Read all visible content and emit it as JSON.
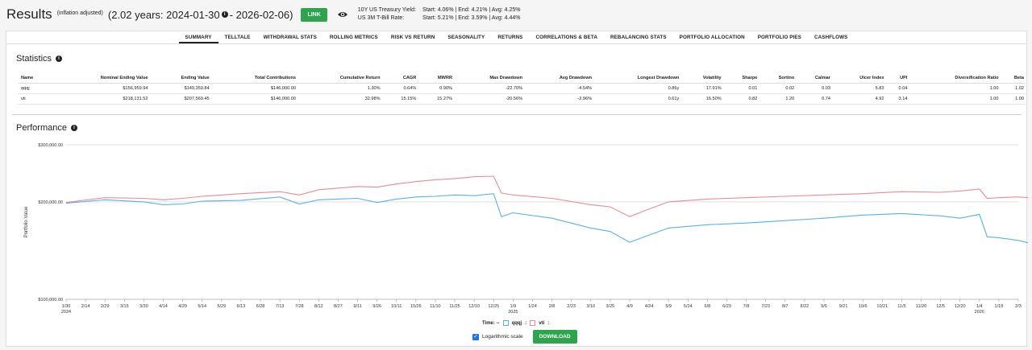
{
  "header": {
    "title": "Results",
    "adjusted": "(inflation adjusted)",
    "range_prefix": "(2.02 years: 2024-01-30",
    "range_suffix": "- 2026-02-06)",
    "link_label": "LINK",
    "treasury_label": "10Y US Treasury Yield:",
    "treasury_values": "Start: 4.06%  |  End: 4.21%  |  Avg: 4.25%",
    "tbill_label": "US 3M T-Bill Rate:",
    "tbill_values": "Start: 5.21%  |  End: 3.59%  |  Avg: 4.44%"
  },
  "tabs": [
    "SUMMARY",
    "TELLTALE",
    "WITHDRAWAL STATS",
    "ROLLING METRICS",
    "RISK VS RETURN",
    "SEASONALITY",
    "RETURNS",
    "CORRELATIONS & BETA",
    "REBALANCING STATS",
    "PORTFOLIO ALLOCATION",
    "PORTFOLIO PIES",
    "CASHFLOWS"
  ],
  "statistics": {
    "title": "Statistics",
    "columns": [
      "Name",
      "Nominal Ending Value",
      "Ending Value",
      "Total Contributions",
      "Cumulative Return",
      "CAGR",
      "MWRR",
      "Max Drawdown",
      "Avg Drawdown",
      "Longest Drawdown",
      "Volatility",
      "Sharpe",
      "Sortino",
      "Calmar",
      "Ulcer Index",
      "UPI",
      "Diversification Ratio",
      "Beta"
    ],
    "rows": [
      [
        "qqqj",
        "$156,959.94",
        "$149,359.84",
        "$146,000.00",
        "1.30%",
        "0.64%",
        "0.90%",
        "-22.70%",
        "-4.54%",
        "0.86y",
        "17.91%",
        "0.01",
        "0.02",
        "0.03",
        "5.83",
        "0.04",
        "1.00",
        "1.02"
      ],
      [
        "vti",
        "$218,131.52",
        "$207,569.45",
        "$146,000.00",
        "32.98%",
        "15.15%",
        "15.27%",
        "-20.56%",
        "-2.96%",
        "0.61y",
        "16.50%",
        "0.82",
        "1.20",
        "0.74",
        "4.92",
        "3.14",
        "1.00",
        "1.00"
      ]
    ]
  },
  "performance": {
    "title": "Performance",
    "legend_time": "Time: --",
    "log_label": "Logarithmic scale",
    "download_label": "DOWNLOAD"
  },
  "chart_data": {
    "type": "line",
    "ylabel": "Portfolio Value",
    "log_scale": true,
    "ylim": [
      100000,
      300000
    ],
    "y_ticks": [
      "$100,000.00",
      "$200,000.00",
      "$300,000.00"
    ],
    "y_tick_values": [
      100000,
      200000,
      300000
    ],
    "x_ticks": [
      "1/30",
      "2/14",
      "2/29",
      "3/15",
      "3/30",
      "4/14",
      "4/29",
      "5/14",
      "5/29",
      "6/13",
      "6/28",
      "7/13",
      "7/28",
      "8/12",
      "8/27",
      "9/11",
      "9/26",
      "10/11",
      "10/26",
      "11/10",
      "11/25",
      "12/10",
      "12/25",
      "1/9",
      "1/24",
      "2/8",
      "2/23",
      "3/10",
      "3/25",
      "4/9",
      "4/24",
      "5/9",
      "5/24",
      "6/8",
      "6/23",
      "7/8",
      "7/23",
      "8/7",
      "8/22",
      "9/6",
      "9/21",
      "10/6",
      "10/21",
      "11/5",
      "11/20",
      "12/5",
      "12/20",
      "1/4",
      "1/19",
      "2/3"
    ],
    "year_labels": [
      {
        "tick": "1/30",
        "year": "2024"
      },
      {
        "tick": "1/9",
        "year": "2025"
      },
      {
        "tick": "1/4",
        "year": "2026"
      }
    ],
    "series": [
      {
        "name": "qqqj",
        "color": "#5ab0e8",
        "x_index": [
          0,
          2,
          4,
          5,
          6,
          7,
          9,
          11,
          12,
          13,
          15,
          16,
          17,
          18,
          19,
          20,
          21,
          22,
          22.4,
          23,
          25,
          27,
          28,
          29,
          30,
          31,
          33,
          35,
          37,
          39,
          41,
          43,
          45,
          46,
          47,
          47.4,
          48,
          49,
          49.6
        ],
        "values": [
          198000,
          203000,
          200000,
          196000,
          197000,
          201000,
          202000,
          207000,
          197000,
          203000,
          205000,
          199000,
          204000,
          207000,
          208000,
          210000,
          209000,
          212000,
          180000,
          185000,
          178000,
          166000,
          162000,
          150000,
          158000,
          166000,
          170000,
          172000,
          175000,
          178000,
          182000,
          184000,
          181000,
          178000,
          183000,
          156000,
          155000,
          152000,
          149000
        ]
      },
      {
        "name": "vti",
        "color": "#e88a9a",
        "x_index": [
          0,
          2,
          4,
          5,
          6,
          7,
          9,
          11,
          12,
          13,
          15,
          16,
          17,
          18,
          19,
          20,
          21,
          22,
          22.4,
          23,
          25,
          27,
          28,
          29,
          30,
          31,
          33,
          35,
          37,
          39,
          41,
          43,
          45,
          46,
          47,
          47.4,
          48,
          49,
          49.6
        ],
        "values": [
          199000,
          206000,
          205000,
          203000,
          205000,
          208000,
          212000,
          215000,
          210000,
          218000,
          223000,
          222000,
          227000,
          231000,
          234000,
          236000,
          239000,
          240000,
          213000,
          210000,
          205000,
          196000,
          193000,
          180000,
          190000,
          200000,
          204000,
          206000,
          208000,
          210000,
          212000,
          215000,
          214000,
          216000,
          219000,
          205000,
          206000,
          207000,
          206000
        ]
      }
    ]
  }
}
